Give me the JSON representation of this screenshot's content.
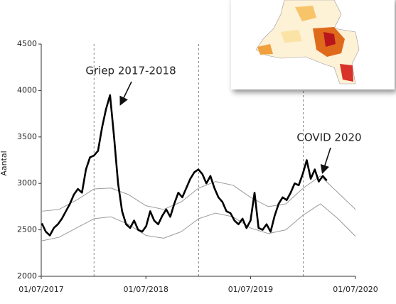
{
  "chart_data": {
    "type": "line",
    "y_label": "Aantal",
    "annotations": [
      {
        "text": "Griep 2017-2018"
      },
      {
        "text": "COVID 2020"
      }
    ],
    "xlim": [
      "2017-07-01",
      "2020-07-01"
    ],
    "xticks": [
      {
        "value": "2017-07-01",
        "label": "01/07/2017"
      },
      {
        "value": "2018-07-01",
        "label": "01/07/2018"
      },
      {
        "value": "2019-07-01",
        "label": "01/07/2019"
      },
      {
        "value": "2020-07-01",
        "label": "01/07/2020"
      }
    ],
    "vlines": [
      "2018-01-01",
      "2019-01-01",
      "2020-01-01"
    ],
    "ylim": [
      2000,
      4500
    ],
    "yticks": [
      2000,
      2500,
      3000,
      3500,
      4000,
      4500
    ],
    "series": [
      {
        "color": "#000000",
        "x": [
          "2017-07-03",
          "2017-07-17",
          "2017-07-31",
          "2017-08-14",
          "2017-08-28",
          "2017-09-11",
          "2017-09-25",
          "2017-10-09",
          "2017-10-23",
          "2017-11-06",
          "2017-11-20",
          "2017-12-04",
          "2017-12-18",
          "2018-01-01",
          "2018-01-15",
          "2018-01-29",
          "2018-02-12",
          "2018-02-26",
          "2018-03-12",
          "2018-03-26",
          "2018-04-09",
          "2018-04-23",
          "2018-05-07",
          "2018-05-21",
          "2018-06-04",
          "2018-06-18",
          "2018-07-02",
          "2018-07-16",
          "2018-07-30",
          "2018-08-13",
          "2018-08-27",
          "2018-09-10",
          "2018-09-24",
          "2018-10-08",
          "2018-10-22",
          "2018-11-05",
          "2018-11-19",
          "2018-12-03",
          "2018-12-17",
          "2018-12-31",
          "2019-01-14",
          "2019-01-28",
          "2019-02-11",
          "2019-02-25",
          "2019-03-11",
          "2019-03-25",
          "2019-04-08",
          "2019-04-22",
          "2019-05-06",
          "2019-05-20",
          "2019-06-03",
          "2019-06-17",
          "2019-07-01",
          "2019-07-15",
          "2019-07-29",
          "2019-08-12",
          "2019-08-26",
          "2019-09-09",
          "2019-09-23",
          "2019-10-07",
          "2019-10-21",
          "2019-11-04",
          "2019-11-18",
          "2019-12-02",
          "2019-12-16",
          "2019-12-30",
          "2020-01-13",
          "2020-01-27",
          "2020-02-10",
          "2020-02-24",
          "2020-03-09",
          "2020-03-23"
        ],
        "values": [
          2570,
          2480,
          2440,
          2520,
          2560,
          2620,
          2700,
          2780,
          2880,
          2940,
          2900,
          3150,
          3280,
          3300,
          3350,
          3600,
          3800,
          3950,
          3500,
          3000,
          2700,
          2560,
          2520,
          2600,
          2500,
          2480,
          2540,
          2700,
          2600,
          2560,
          2650,
          2720,
          2640,
          2780,
          2900,
          2850,
          2950,
          3050,
          3120,
          3150,
          3100,
          3000,
          3080,
          2950,
          2850,
          2800,
          2700,
          2680,
          2600,
          2560,
          2620,
          2520,
          2600,
          2900,
          2520,
          2500,
          2560,
          2480,
          2650,
          2780,
          2850,
          2820,
          2900,
          3000,
          2980,
          3100,
          3250,
          3050,
          3150,
          3020,
          3080,
          3030
        ]
      },
      {
        "color": "#9a9a9a",
        "x": [
          "2017-07-01",
          "2017-09-01",
          "2017-11-01",
          "2018-01-01",
          "2018-03-01",
          "2018-05-01",
          "2018-07-01",
          "2018-09-01",
          "2018-11-01",
          "2019-01-01",
          "2019-03-01",
          "2019-05-01",
          "2019-07-01",
          "2019-09-01",
          "2019-11-01",
          "2020-01-01",
          "2020-03-01",
          "2020-05-01",
          "2020-07-01"
        ],
        "values": [
          2700,
          2720,
          2820,
          2940,
          2950,
          2880,
          2760,
          2720,
          2800,
          2950,
          3020,
          2980,
          2850,
          2750,
          2780,
          2950,
          3080,
          2900,
          2720
        ]
      },
      {
        "color": "#9a9a9a",
        "x": [
          "2017-07-01",
          "2017-09-01",
          "2017-11-01",
          "2018-01-01",
          "2018-03-01",
          "2018-05-01",
          "2018-07-01",
          "2018-09-01",
          "2018-11-01",
          "2019-01-01",
          "2019-03-01",
          "2019-05-01",
          "2019-07-01",
          "2019-09-01",
          "2019-11-01",
          "2020-01-01",
          "2020-03-01",
          "2020-05-01",
          "2020-07-01"
        ],
        "values": [
          2380,
          2420,
          2520,
          2620,
          2640,
          2560,
          2440,
          2410,
          2480,
          2620,
          2680,
          2640,
          2520,
          2460,
          2500,
          2660,
          2780,
          2620,
          2430
        ]
      }
    ]
  }
}
